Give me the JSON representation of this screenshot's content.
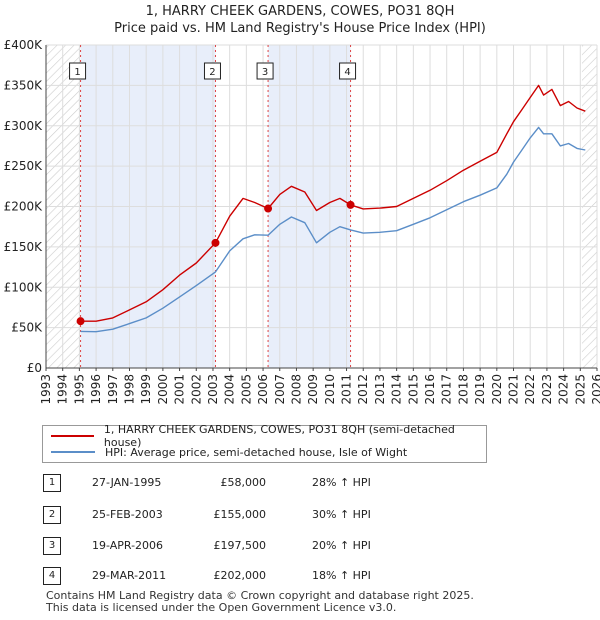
{
  "title_line1": "1, HARRY CHEEK GARDENS, COWES, PO31 8QH",
  "title_line2": "Price paid vs. HM Land Registry's House Price Index (HPI)",
  "chart_data": {
    "type": "line",
    "xlim": [
      1993,
      2026
    ],
    "ylim": [
      0,
      400000
    ],
    "x_ticks": [
      "1993",
      "1994",
      "1995",
      "1996",
      "1997",
      "1998",
      "1999",
      "2000",
      "2001",
      "2002",
      "2003",
      "2004",
      "2005",
      "2006",
      "2007",
      "2008",
      "2009",
      "2010",
      "2011",
      "2012",
      "2013",
      "2014",
      "2015",
      "2016",
      "2017",
      "2018",
      "2019",
      "2020",
      "2021",
      "2022",
      "2023",
      "2024",
      "2025",
      "2026"
    ],
    "y_ticks": [
      {
        "value": 0,
        "label": "£0"
      },
      {
        "value": 50000,
        "label": "£50K"
      },
      {
        "value": 100000,
        "label": "£100K"
      },
      {
        "value": 150000,
        "label": "£150K"
      },
      {
        "value": 200000,
        "label": "£200K"
      },
      {
        "value": 250000,
        "label": "£250K"
      },
      {
        "value": 300000,
        "label": "£300K"
      },
      {
        "value": 350000,
        "label": "£350K"
      },
      {
        "value": 400000,
        "label": "£400K"
      }
    ],
    "hatch_regions": [
      [
        1993,
        1995.07
      ],
      [
        2025.1,
        2026
      ]
    ],
    "shaded_spans": [
      [
        1995.07,
        2003.15
      ],
      [
        2006.3,
        2011.24
      ]
    ],
    "series": [
      {
        "name": "1, HARRY CHEEK GARDENS, COWES, PO31 8QH (semi-detached house)",
        "color": "#cc0000",
        "x": [
          1995.07,
          1996,
          1997,
          1998,
          1999,
          2000,
          2001,
          2002,
          2003.15,
          2004,
          2004.8,
          2005.5,
          2006.3,
          2007,
          2007.7,
          2008.5,
          2009.2,
          2010,
          2010.6,
          2011.24,
          2012,
          2013,
          2014,
          2015,
          2016,
          2017,
          2018,
          2019,
          2020,
          2020.6,
          2021,
          2021.5,
          2022,
          2022.5,
          2022.8,
          2023.3,
          2023.8,
          2024.3,
          2024.8,
          2025.3
        ],
        "y": [
          58000,
          58000,
          62000,
          72000,
          82000,
          97000,
          115000,
          130000,
          155000,
          188000,
          210000,
          205000,
          197500,
          215000,
          225000,
          218000,
          195000,
          205000,
          210000,
          202000,
          197000,
          198000,
          200000,
          210000,
          220000,
          232000,
          245000,
          256000,
          267000,
          290000,
          305000,
          320000,
          335000,
          350000,
          338000,
          345000,
          325000,
          330000,
          322000,
          318000
        ]
      },
      {
        "name": "HPI: Average price, semi-detached house, Isle of Wight",
        "color": "#5b8ec8",
        "x": [
          1995.07,
          1996,
          1997,
          1998,
          1999,
          2000,
          2001,
          2002,
          2003.15,
          2004,
          2004.8,
          2005.5,
          2006.3,
          2007,
          2007.7,
          2008.5,
          2009.2,
          2010,
          2010.6,
          2011.24,
          2012,
          2013,
          2014,
          2015,
          2016,
          2017,
          2018,
          2019,
          2020,
          2020.6,
          2021,
          2021.5,
          2022,
          2022.5,
          2022.8,
          2023.3,
          2023.8,
          2024.3,
          2024.8,
          2025.3
        ],
        "y": [
          45300,
          45000,
          48000,
          55000,
          62000,
          74000,
          88000,
          102000,
          119000,
          145000,
          160000,
          165000,
          164500,
          178000,
          187000,
          180000,
          155000,
          168000,
          175000,
          171000,
          167000,
          168000,
          170000,
          178000,
          186000,
          196000,
          206000,
          214000,
          223000,
          240000,
          255000,
          270000,
          285000,
          298000,
          290000,
          290000,
          275000,
          278000,
          272000,
          270000
        ]
      }
    ],
    "markers": [
      {
        "label": "1",
        "x": 1995.07,
        "y": 58000
      },
      {
        "label": "2",
        "x": 2003.15,
        "y": 155000
      },
      {
        "label": "3",
        "x": 2006.3,
        "y": 197500
      },
      {
        "label": "4",
        "x": 2011.24,
        "y": 202000
      }
    ]
  },
  "legend": {
    "property": "1, HARRY CHEEK GARDENS, COWES, PO31 8QH (semi-detached house)",
    "hpi": "HPI: Average price, semi-detached house, Isle of Wight"
  },
  "transactions": [
    {
      "num": "1",
      "date": "27-JAN-1995",
      "price": "£58,000",
      "hpi": "28% ↑ HPI"
    },
    {
      "num": "2",
      "date": "25-FEB-2003",
      "price": "£155,000",
      "hpi": "30% ↑ HPI"
    },
    {
      "num": "3",
      "date": "19-APR-2006",
      "price": "£197,500",
      "hpi": "20% ↑ HPI"
    },
    {
      "num": "4",
      "date": "29-MAR-2011",
      "price": "£202,000",
      "hpi": "18% ↑ HPI"
    }
  ],
  "footer": {
    "line1": "Contains HM Land Registry data © Crown copyright and database right 2025.",
    "line2": "This data is licensed under the Open Government Licence v3.0."
  },
  "colors": {
    "property": "#cc0000",
    "hpi": "#5b8ec8",
    "shade": "#e8eefa",
    "grid": "#dddddd"
  }
}
